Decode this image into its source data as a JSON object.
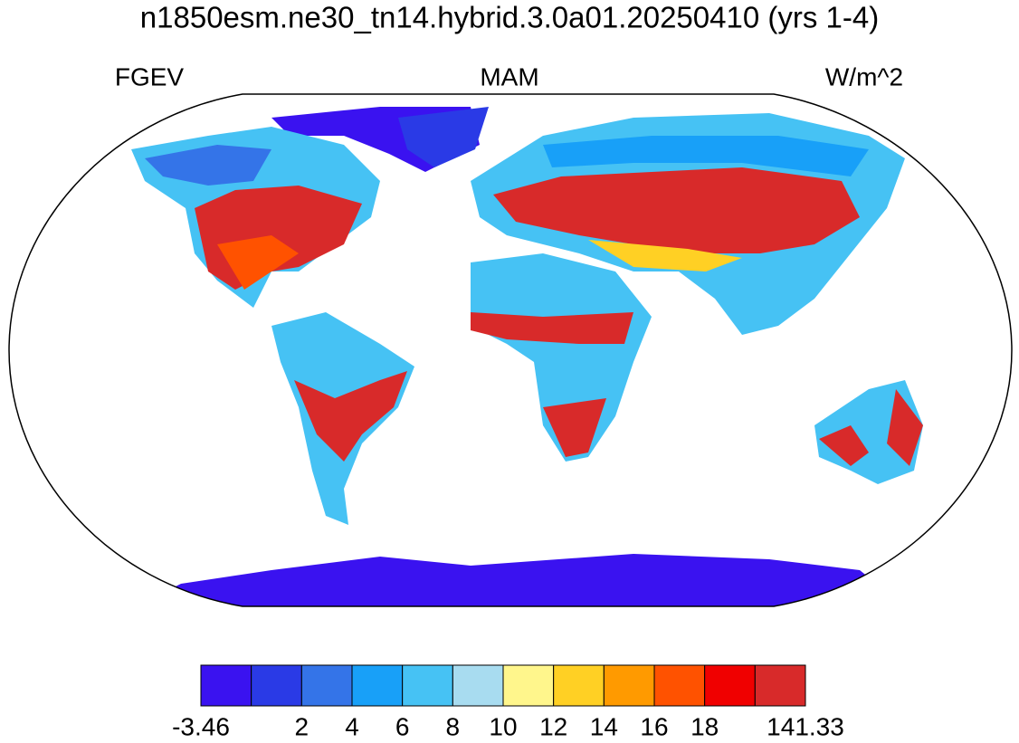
{
  "title": "n1850esm.ne30_tn14.hybrid.3.0a01.20250410 (yrs 1-4)",
  "left_label": "FGEV",
  "center_label": "MAM",
  "right_label": "W/m^2",
  "colorbar": {
    "colors": [
      "#3a12f0",
      "#2a3ae6",
      "#3474e8",
      "#18a0f8",
      "#46c2f4",
      "#a8dcf0",
      "#fff68c",
      "#ffd024",
      "#ff9a00",
      "#ff5200",
      "#f00000",
      "#d82a2a"
    ],
    "labels": [
      "-3.46",
      null,
      "2",
      "4",
      "6",
      "8",
      "10",
      "12",
      "14",
      "16",
      "18",
      null,
      "141.33"
    ]
  }
}
